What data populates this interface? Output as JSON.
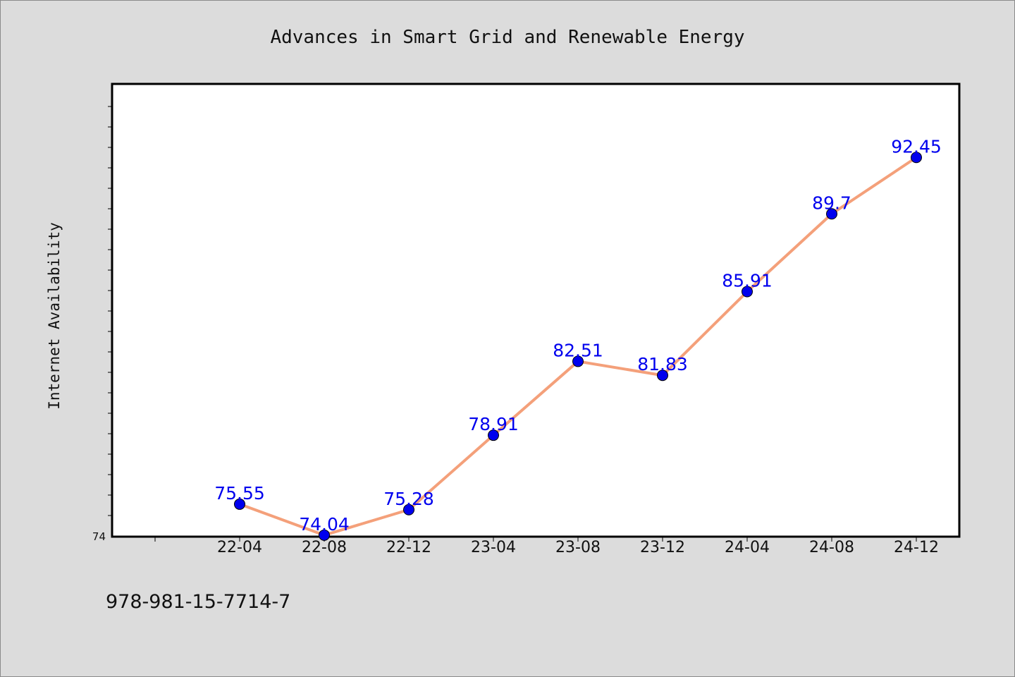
{
  "chart_data": {
    "type": "line",
    "title": "Advances in Smart Grid and Renewable Energy",
    "xlabel": "",
    "ylabel": "Internet Availability",
    "categories": [
      "22-04",
      "22-08",
      "22-12",
      "23-04",
      "23-08",
      "23-12",
      "24-04",
      "24-08",
      "24-12"
    ],
    "values": [
      75.55,
      74.04,
      75.28,
      78.91,
      82.51,
      81.83,
      85.91,
      89.7,
      92.45
    ],
    "data_labels": [
      "75.55",
      "74.04",
      "75.28",
      "78.91",
      "82.51",
      "81.83",
      "85.91",
      "89.7",
      "92.45"
    ],
    "ylim": [
      74,
      96
    ],
    "y_tick_labels": [
      "74"
    ],
    "line_color": "#f4a07a",
    "marker_color": "#0000ee",
    "label_color": "#0000ee",
    "grid": false,
    "legend": "none"
  },
  "footer": {
    "isbn": "978-981-15-7714-7"
  }
}
